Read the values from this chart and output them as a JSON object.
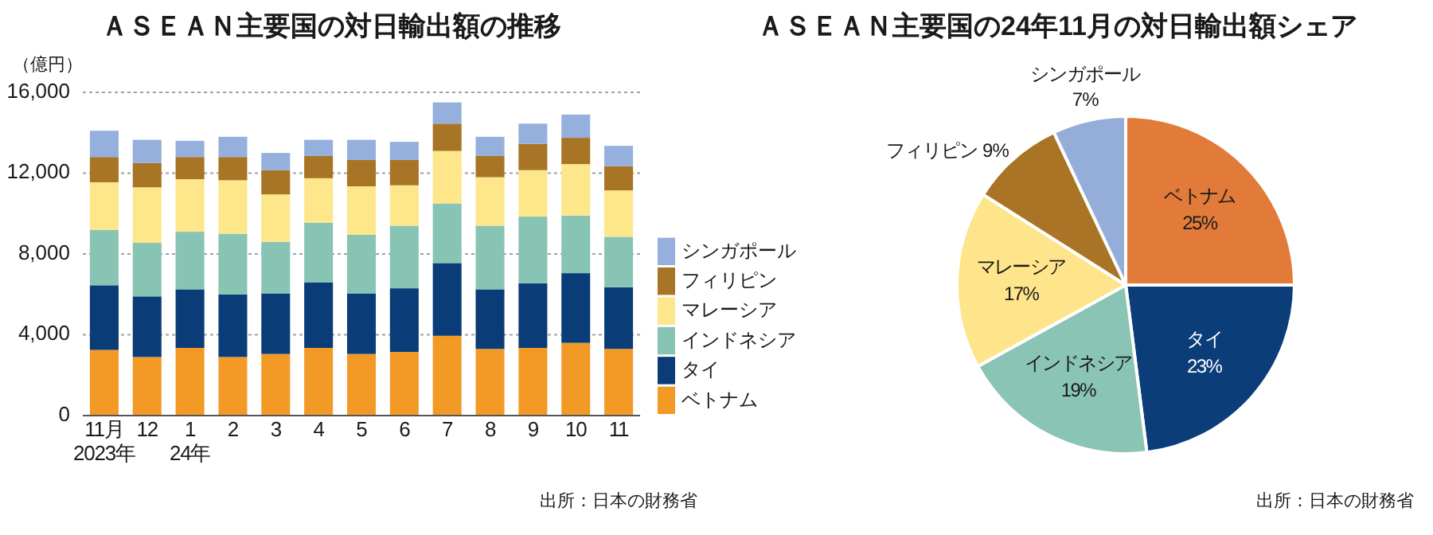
{
  "chart_data": [
    {
      "type": "bar",
      "stacked": true,
      "title": "ＡＳＥＡＮ主要国の対日輸出額の推移",
      "ylabel": "（億円）",
      "categories": [
        "11月\n2023年",
        "12",
        "1\n24年",
        "2",
        "3",
        "4",
        "5",
        "6",
        "7",
        "8",
        "9",
        "10",
        "11"
      ],
      "series": [
        {
          "name": "ベトナム",
          "color": "#f39a26",
          "values": [
            3250,
            2900,
            3350,
            2900,
            3050,
            3350,
            3050,
            3150,
            3950,
            3300,
            3350,
            3600,
            3300
          ]
        },
        {
          "name": "タイ",
          "color": "#0a3d78",
          "values": [
            3200,
            3000,
            2900,
            3100,
            3000,
            3250,
            3000,
            3150,
            3600,
            2950,
            3200,
            3450,
            3050
          ]
        },
        {
          "name": "インドネシア",
          "color": "#88c4b4",
          "values": [
            2750,
            2650,
            2850,
            3000,
            2550,
            2950,
            2900,
            3100,
            2950,
            3150,
            3300,
            2850,
            2500
          ]
        },
        {
          "name": "マレーシア",
          "color": "#fee68a",
          "values": [
            2350,
            2750,
            2600,
            2650,
            2350,
            2200,
            2400,
            2000,
            2600,
            2400,
            2300,
            2550,
            2300
          ]
        },
        {
          "name": "フィリピン",
          "color": "#a87425",
          "values": [
            1250,
            1200,
            1100,
            1150,
            1200,
            1100,
            1300,
            1250,
            1350,
            1050,
            1300,
            1300,
            1200
          ]
        },
        {
          "name": "シンガポール",
          "color": "#95b0dc",
          "values": [
            1300,
            1150,
            800,
            1000,
            850,
            800,
            1000,
            900,
            1050,
            950,
            1000,
            1150,
            1000
          ]
        }
      ],
      "ylim": [
        0,
        16000
      ],
      "yticks": [
        0,
        {
          "value": 4000,
          "label": "4,000"
        },
        {
          "value": 8000,
          "label": "8,000"
        },
        {
          "value": 12000,
          "label": "12,000"
        },
        {
          "value": 16000,
          "label": "16,000"
        }
      ],
      "grid": "y",
      "legend": "right",
      "annotations": [
        "出所：日本の財務省"
      ]
    },
    {
      "type": "pie",
      "title": "ＡＳＥＡＮ主要国の24年11月の対日輸出額シェア",
      "categories": [
        "ベトナム",
        "タイ",
        "インドネシア",
        "マレーシア",
        "フィリピン",
        "シンガポール"
      ],
      "values": [
        25,
        23,
        19,
        17,
        9,
        7
      ],
      "value_labels": [
        "25%",
        "23%",
        "19%",
        "17%",
        "9%",
        "7%"
      ],
      "colors": [
        "#e27b39",
        "#0b3d78",
        "#8ac4b4",
        "#fee48a",
        "#a97426",
        "#95aed9"
      ],
      "annotations": [
        "出所：日本の財務省"
      ]
    }
  ]
}
